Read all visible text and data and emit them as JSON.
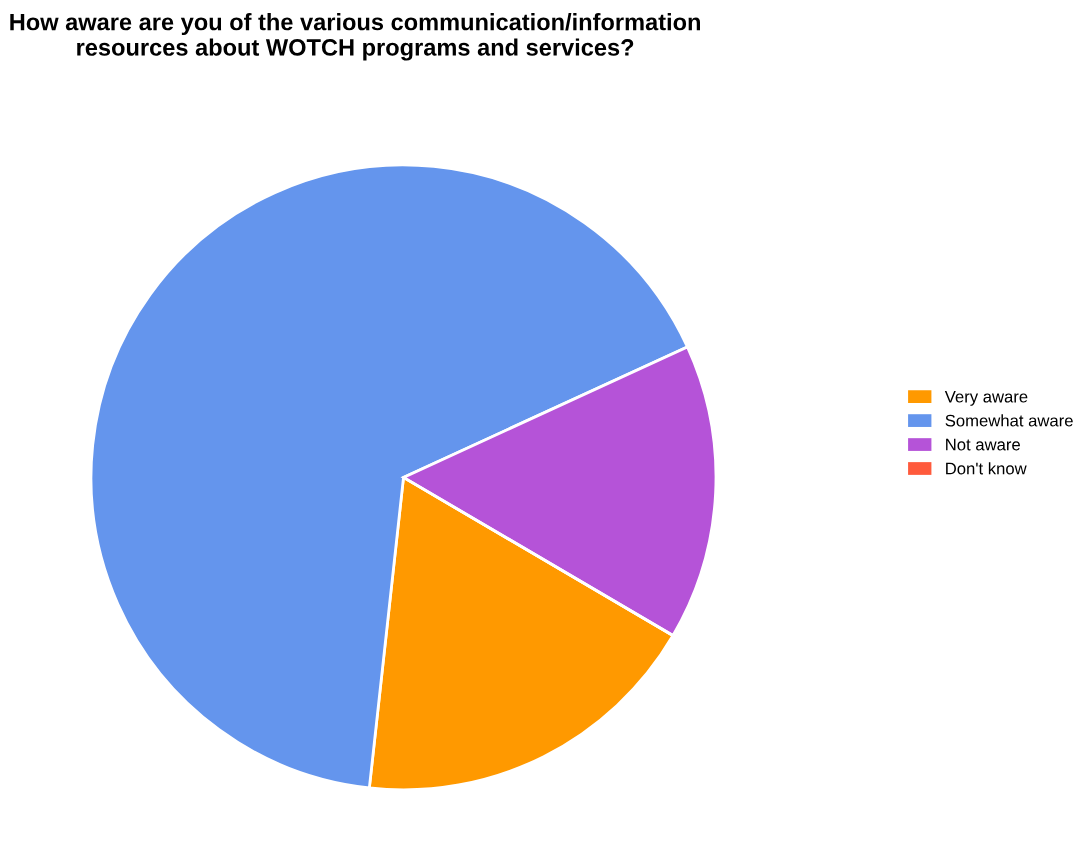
{
  "chart_data": {
    "type": "pie",
    "title": "How aware are you of the various communication/information\nresources about WOTCH programs and services?",
    "categories": [
      "Very aware",
      "Somewhat aware",
      "Not aware",
      "Don't know"
    ],
    "values": [
      18.3,
      66.4,
      15.3,
      0
    ],
    "colors": [
      "#ff9900",
      "#6495ed",
      "#b553d8",
      "#ff5a3c"
    ],
    "legend": "right"
  }
}
